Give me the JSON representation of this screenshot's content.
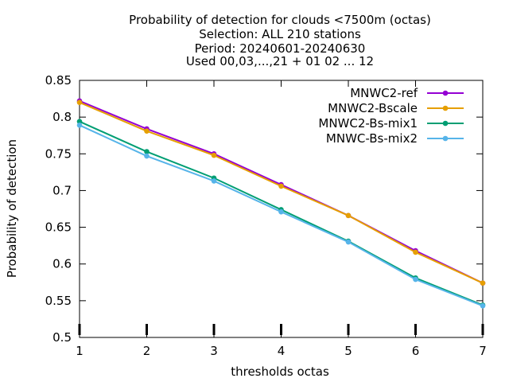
{
  "chart_data": {
    "type": "line",
    "title_lines": [
      "Probability of detection  for clouds <7500m (octas)",
      "Selection: ALL    210 stations",
      "Period: 20240601-20240630",
      "Used 00,03,...,21 + 01 02 ... 12"
    ],
    "xlabel": "thresholds octas",
    "ylabel": "Probability of detection",
    "x": [
      1,
      2,
      3,
      4,
      5,
      6,
      7
    ],
    "xlim": [
      1,
      7
    ],
    "ylim": [
      0.5,
      0.85
    ],
    "yticks": [
      0.5,
      0.55,
      0.6,
      0.65,
      0.7,
      0.75,
      0.8,
      0.85
    ],
    "ytick_labels": [
      "0.5",
      "0.55",
      "0.6",
      "0.65",
      "0.7",
      "0.75",
      "0.8",
      "0.85"
    ],
    "xtick_labels": [
      "1",
      "2",
      "3",
      "4",
      "5",
      "6",
      "7"
    ],
    "legend_position": "top-right",
    "grid": false,
    "series": [
      {
        "name": "MNWC2-ref",
        "color": "#9400d3",
        "values": [
          0.822,
          0.784,
          0.75,
          0.708,
          0.666,
          0.618,
          0.574
        ]
      },
      {
        "name": "MNWC2-Bscale",
        "color": "#e69f00",
        "values": [
          0.82,
          0.781,
          0.748,
          0.706,
          0.666,
          0.616,
          0.574
        ]
      },
      {
        "name": "MNWC2-Bs-mix1",
        "color": "#009e73",
        "values": [
          0.794,
          0.753,
          0.717,
          0.674,
          0.631,
          0.581,
          0.544
        ]
      },
      {
        "name": "MNWC-Bs-mix2",
        "color": "#56b4e9",
        "values": [
          0.789,
          0.747,
          0.713,
          0.671,
          0.63,
          0.579,
          0.543
        ]
      }
    ],
    "bottom_tick_marks": "thick ticks at each x on bottom axis"
  }
}
